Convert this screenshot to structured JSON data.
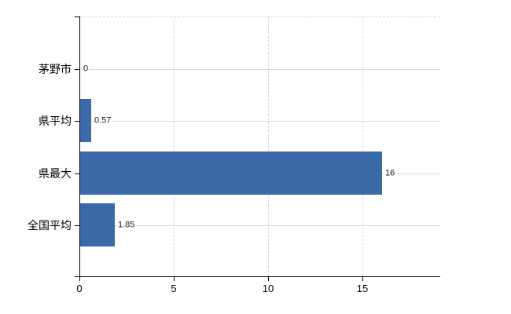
{
  "chart_data": {
    "type": "bar",
    "orientation": "horizontal",
    "title": "",
    "xlabel": "",
    "ylabel": "",
    "categories": [
      "茅野市",
      "県平均",
      "県最大",
      "全国平均"
    ],
    "values": [
      0,
      0.57,
      16,
      1.85
    ],
    "value_labels": [
      "0",
      "0.57",
      "16",
      "1.85"
    ],
    "xticks": [
      0,
      5,
      10,
      15
    ],
    "xtick_labels": [
      "0",
      "5",
      "10",
      "15"
    ],
    "xlim": [
      0,
      19.1
    ],
    "grid": true,
    "legend": false,
    "bar_color": "#3a6aa8",
    "vertical_gridline_color": "#d6d6d6",
    "row_line_color": "#d7dbd0",
    "axis_color": "#000000",
    "background_color": "#ffffff"
  }
}
